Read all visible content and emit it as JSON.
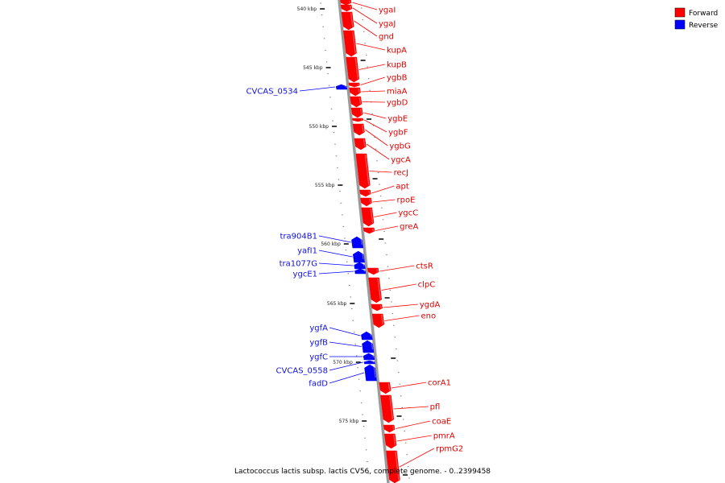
{
  "caption": "Lactococcus lactis subsp. lactis CV56, complete genome. - 0..2399458",
  "legend": [
    {
      "label": "Forward",
      "color": "#ff0000"
    },
    {
      "label": "Reverse",
      "color": "#0000ff"
    }
  ],
  "scale_labels": [
    "540 kbp",
    "545 kbp",
    "550 kbp",
    "555 kbp",
    "560 kbp",
    "565 kbp",
    "570 kbp",
    "575 kbp"
  ],
  "forward_genes": [
    "ygaI",
    "ygaJ",
    "gnd",
    "kupA",
    "kupB",
    "ygbB",
    "miaA",
    "ygbD",
    "ygbE",
    "ygbF",
    "ygbG",
    "ygcA",
    "recJ",
    "apt",
    "rpoE",
    "ygcC",
    "greA",
    "ctsR",
    "clpC",
    "ygdA",
    "eno",
    "corA1",
    "pfl",
    "coaE",
    "pmrA",
    "rpmG2"
  ],
  "reverse_genes": [
    "CVCAS_0534",
    "tra904B1",
    "yafI1",
    "tra1077G",
    "ygcE1",
    "ygfA",
    "ygfB",
    "ygfC",
    "CVCAS_0558",
    "fadD"
  ],
  "colors": {
    "forward": "#ff0000",
    "reverse": "#0000ff",
    "backbone": "#888888"
  }
}
